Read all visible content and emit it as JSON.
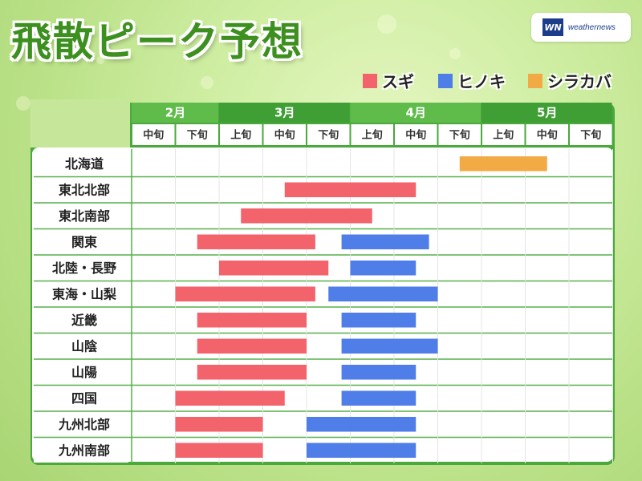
{
  "title": "飛散ピーク予想",
  "brand": {
    "logo_mark": "WN",
    "logo_text": "weathernews"
  },
  "colors": {
    "sugi": "#f2636b",
    "hinoki": "#4f7ee8",
    "shirakaba": "#f2aa44",
    "header_dark": "#3f9f35",
    "header_light": "#5fbb4a"
  },
  "chart_data": {
    "type": "gantt",
    "legend": [
      {
        "label": "スギ",
        "key": "sugi"
      },
      {
        "label": "ヒノキ",
        "key": "hinoki"
      },
      {
        "label": "シラカバ",
        "key": "shirakaba"
      }
    ],
    "months": [
      {
        "label": "2月",
        "span": 2
      },
      {
        "label": "3月",
        "span": 3
      },
      {
        "label": "4月",
        "span": 3
      },
      {
        "label": "5月",
        "span": 3
      }
    ],
    "periods": [
      "中旬",
      "下旬",
      "上旬",
      "中旬",
      "下旬",
      "上旬",
      "中旬",
      "下旬",
      "上旬",
      "中旬",
      "下旬"
    ],
    "rows": [
      {
        "region": "北海道",
        "bars": [
          {
            "type": "shirakaba",
            "start": 7.5,
            "end": 9.5
          }
        ]
      },
      {
        "region": "東北北部",
        "bars": [
          {
            "type": "sugi",
            "start": 3.5,
            "end": 6.5
          }
        ]
      },
      {
        "region": "東北南部",
        "bars": [
          {
            "type": "sugi",
            "start": 2.5,
            "end": 5.5
          }
        ]
      },
      {
        "region": "関東",
        "bars": [
          {
            "type": "sugi",
            "start": 1.5,
            "end": 4.2
          },
          {
            "type": "hinoki",
            "start": 4.8,
            "end": 6.8
          }
        ]
      },
      {
        "region": "北陸・長野",
        "bars": [
          {
            "type": "sugi",
            "start": 2.0,
            "end": 4.5
          },
          {
            "type": "hinoki",
            "start": 5.0,
            "end": 6.5
          }
        ]
      },
      {
        "region": "東海・山梨",
        "bars": [
          {
            "type": "sugi",
            "start": 1.0,
            "end": 4.2
          },
          {
            "type": "hinoki",
            "start": 4.5,
            "end": 7.0
          }
        ]
      },
      {
        "region": "近畿",
        "bars": [
          {
            "type": "sugi",
            "start": 1.5,
            "end": 4.0
          },
          {
            "type": "hinoki",
            "start": 4.8,
            "end": 6.5
          }
        ]
      },
      {
        "region": "山陰",
        "bars": [
          {
            "type": "sugi",
            "start": 1.5,
            "end": 4.0
          },
          {
            "type": "hinoki",
            "start": 4.8,
            "end": 7.0
          }
        ]
      },
      {
        "region": "山陽",
        "bars": [
          {
            "type": "sugi",
            "start": 1.5,
            "end": 4.0
          },
          {
            "type": "hinoki",
            "start": 4.8,
            "end": 6.5
          }
        ]
      },
      {
        "region": "四国",
        "bars": [
          {
            "type": "sugi",
            "start": 1.0,
            "end": 3.5
          },
          {
            "type": "hinoki",
            "start": 4.8,
            "end": 6.5
          }
        ]
      },
      {
        "region": "九州北部",
        "bars": [
          {
            "type": "sugi",
            "start": 1.0,
            "end": 3.0
          },
          {
            "type": "hinoki",
            "start": 4.0,
            "end": 6.5
          }
        ]
      },
      {
        "region": "九州南部",
        "bars": [
          {
            "type": "sugi",
            "start": 1.0,
            "end": 3.0
          },
          {
            "type": "hinoki",
            "start": 4.0,
            "end": 6.5
          }
        ]
      }
    ]
  }
}
